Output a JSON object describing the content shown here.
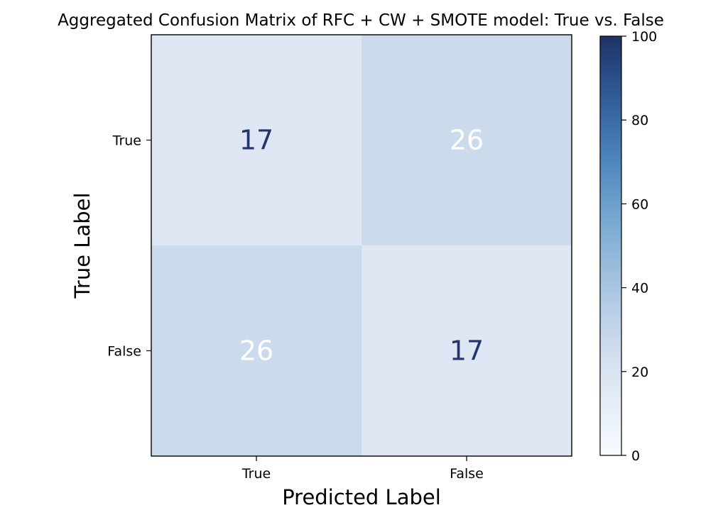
{
  "chart_data": {
    "type": "heatmap",
    "title": "Aggregated Confusion Matrix of RFC + CW + SMOTE model: True vs. False",
    "xlabel": "Predicted Label",
    "ylabel": "True Label",
    "x_categories": [
      "True",
      "False"
    ],
    "y_categories": [
      "True",
      "False"
    ],
    "values": [
      [
        17,
        26
      ],
      [
        26,
        17
      ]
    ],
    "value_labels": [
      [
        "17",
        "26"
      ],
      [
        "26",
        "17"
      ]
    ],
    "colorbar": {
      "range": [
        0,
        100
      ],
      "ticks": [
        0,
        20,
        40,
        60,
        80,
        100
      ],
      "tick_labels": [
        "0",
        "20",
        "40",
        "60",
        "80",
        "100"
      ],
      "colormap": "Blues",
      "low_color": "#f7fbff",
      "mid_color": "#6ba0cc",
      "high_color": "#1e3266"
    },
    "annotation_colors": {
      "dark": "#25346d",
      "light": "#ffffff"
    },
    "grid": false
  }
}
